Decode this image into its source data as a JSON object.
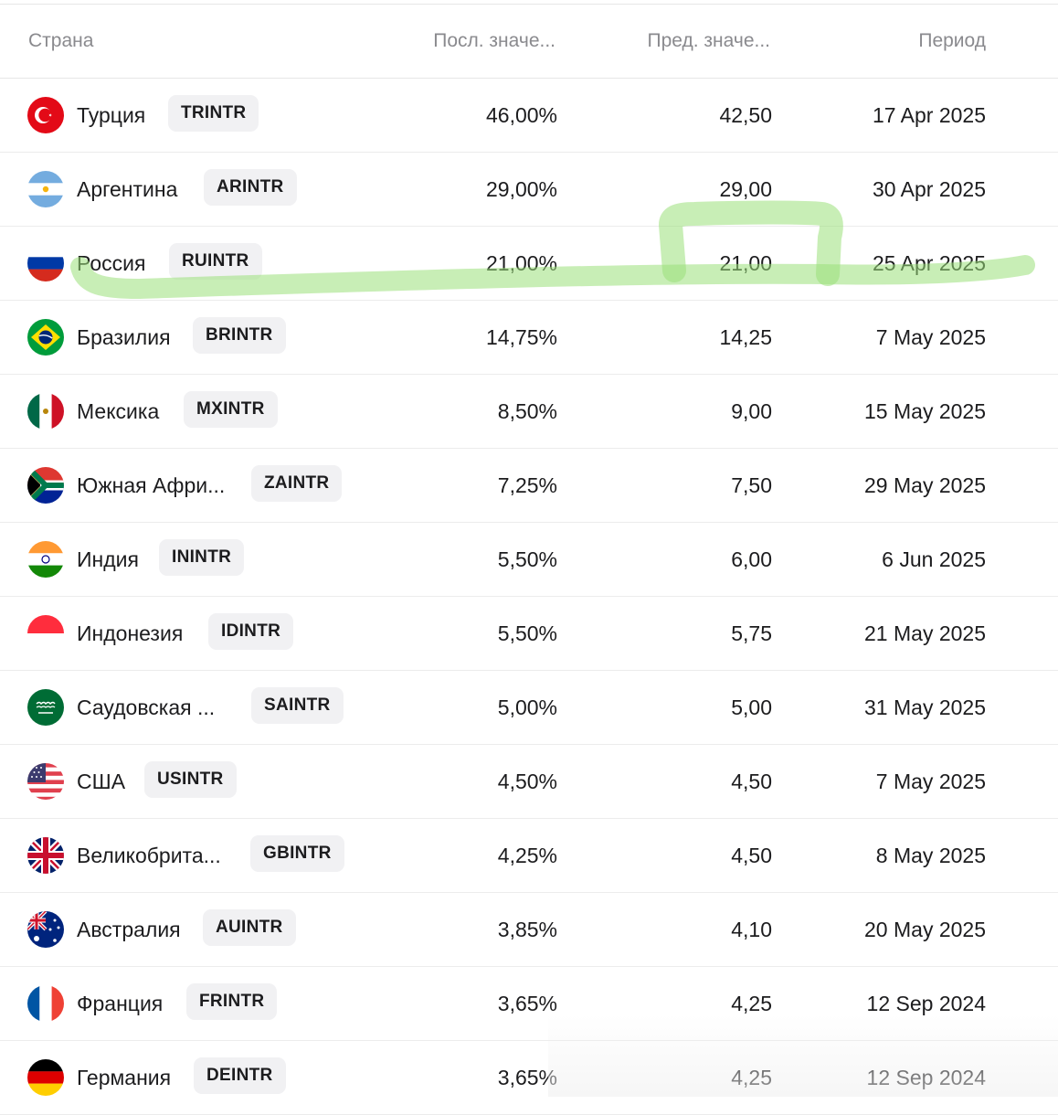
{
  "header": {
    "country": "Страна",
    "last": "Посл. значе...",
    "prev": "Пред. значе...",
    "period": "Период"
  },
  "rows": [
    {
      "name": "Турция",
      "ticker": "TRINTR",
      "last": "46,00%",
      "prev": "42,50",
      "period": "17 Apr 2025",
      "flag": "turkey-flag-icon"
    },
    {
      "name": "Аргентина",
      "ticker": "ARINTR",
      "last": "29,00%",
      "prev": "29,00",
      "period": "30 Apr 2025",
      "flag": "argentina-flag-icon"
    },
    {
      "name": "Россия",
      "ticker": "RUINTR",
      "last": "21,00%",
      "prev": "21,00",
      "period": "25 Apr 2025",
      "flag": "russia-flag-icon"
    },
    {
      "name": "Бразилия",
      "ticker": "BRINTR",
      "last": "14,75%",
      "prev": "14,25",
      "period": "7 May 2025",
      "flag": "brazil-flag-icon"
    },
    {
      "name": "Мексика",
      "ticker": "MXINTR",
      "last": "8,50%",
      "prev": "9,00",
      "period": "15 May 2025",
      "flag": "mexico-flag-icon"
    },
    {
      "name": "Южная Афри...",
      "ticker": "ZAINTR",
      "last": "7,25%",
      "prev": "7,50",
      "period": "29 May 2025",
      "flag": "south-africa-flag-icon"
    },
    {
      "name": "Индия",
      "ticker": "ININTR",
      "last": "5,50%",
      "prev": "6,00",
      "period": "6 Jun 2025",
      "flag": "india-flag-icon"
    },
    {
      "name": "Индонезия",
      "ticker": "IDINTR",
      "last": "5,50%",
      "prev": "5,75",
      "period": "21 May 2025",
      "flag": "indonesia-flag-icon"
    },
    {
      "name": "Саудовская ...",
      "ticker": "SAINTR",
      "last": "5,00%",
      "prev": "5,00",
      "period": "31 May 2025",
      "flag": "saudi-arabia-flag-icon"
    },
    {
      "name": "США",
      "ticker": "USINTR",
      "last": "4,50%",
      "prev": "4,50",
      "period": "7 May 2025",
      "flag": "usa-flag-icon"
    },
    {
      "name": "Великобрита...",
      "ticker": "GBINTR",
      "last": "4,25%",
      "prev": "4,50",
      "period": "8 May 2025",
      "flag": "uk-flag-icon"
    },
    {
      "name": "Австралия",
      "ticker": "AUINTR",
      "last": "3,85%",
      "prev": "4,10",
      "period": "20 May 2025",
      "flag": "australia-flag-icon"
    },
    {
      "name": "Франция",
      "ticker": "FRINTR",
      "last": "3,65%",
      "prev": "4,25",
      "period": "12 Sep 2024",
      "flag": "france-flag-icon"
    },
    {
      "name": "Германия",
      "ticker": "DEINTR",
      "last": "3,65%",
      "prev": "4,25",
      "period": "12 Sep 2024",
      "flag": "germany-flag-icon"
    }
  ],
  "colors": {
    "highlight": "#9be07a"
  }
}
